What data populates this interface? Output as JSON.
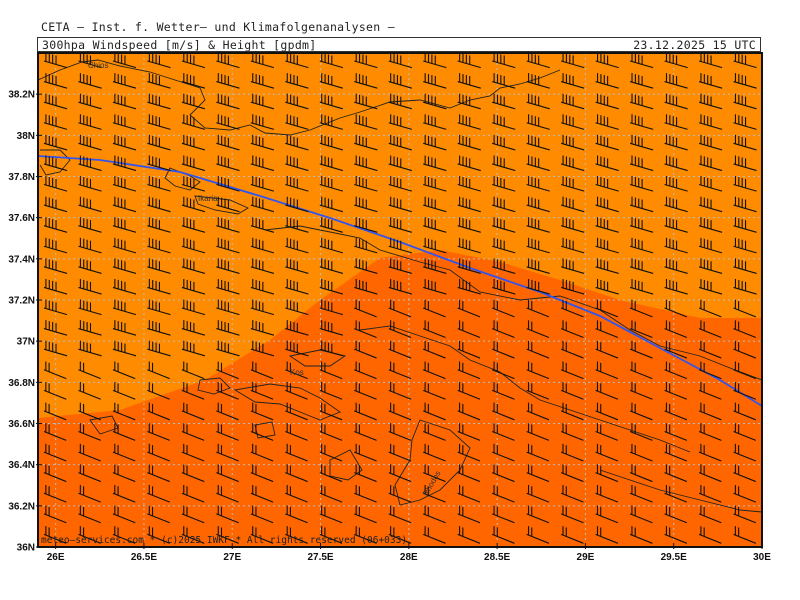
{
  "header": {
    "institute": "CETA — Inst. f. Wetter— und Klimafolgenanalysen —",
    "title": "300hpa_Windspeed_[m/s]_&_Height_[gpdm]",
    "datetime": "23.12.2025  15 UTC"
  },
  "map": {
    "lon_range": [
      25.9,
      30.0
    ],
    "lat_range": [
      36.0,
      38.4
    ],
    "lat_labels": [
      "38.2N",
      "38N",
      "37.8N",
      "37.6N",
      "37.4N",
      "37.2N",
      "37N",
      "36.8N",
      "36.6N",
      "36.4N",
      "36.2N",
      "36N"
    ],
    "lat_values": [
      38.2,
      38.0,
      37.8,
      37.6,
      37.4,
      37.2,
      37.0,
      36.8,
      36.6,
      36.4,
      36.2,
      36.0
    ],
    "lon_labels": [
      "26E",
      "26.5E",
      "27E",
      "27.5E",
      "28E",
      "28.5E",
      "29E",
      "29.5E",
      "30E"
    ],
    "lon_values": [
      26.0,
      26.5,
      27.0,
      27.5,
      28.0,
      28.5,
      29.0,
      29.5,
      30.0
    ],
    "place_labels": [
      "Chios",
      "Ikaria",
      "Kos",
      "Rhodos"
    ],
    "footer": "meteo—services.com  *  (c)2025 IWKF  *  All rights reserved (06+033)",
    "colors": {
      "light_orange": "#ff8c00",
      "dark_orange": "#ff6600",
      "contour": "#3355ee",
      "coast": "#222222",
      "grid": "#bbbbbb"
    }
  }
}
